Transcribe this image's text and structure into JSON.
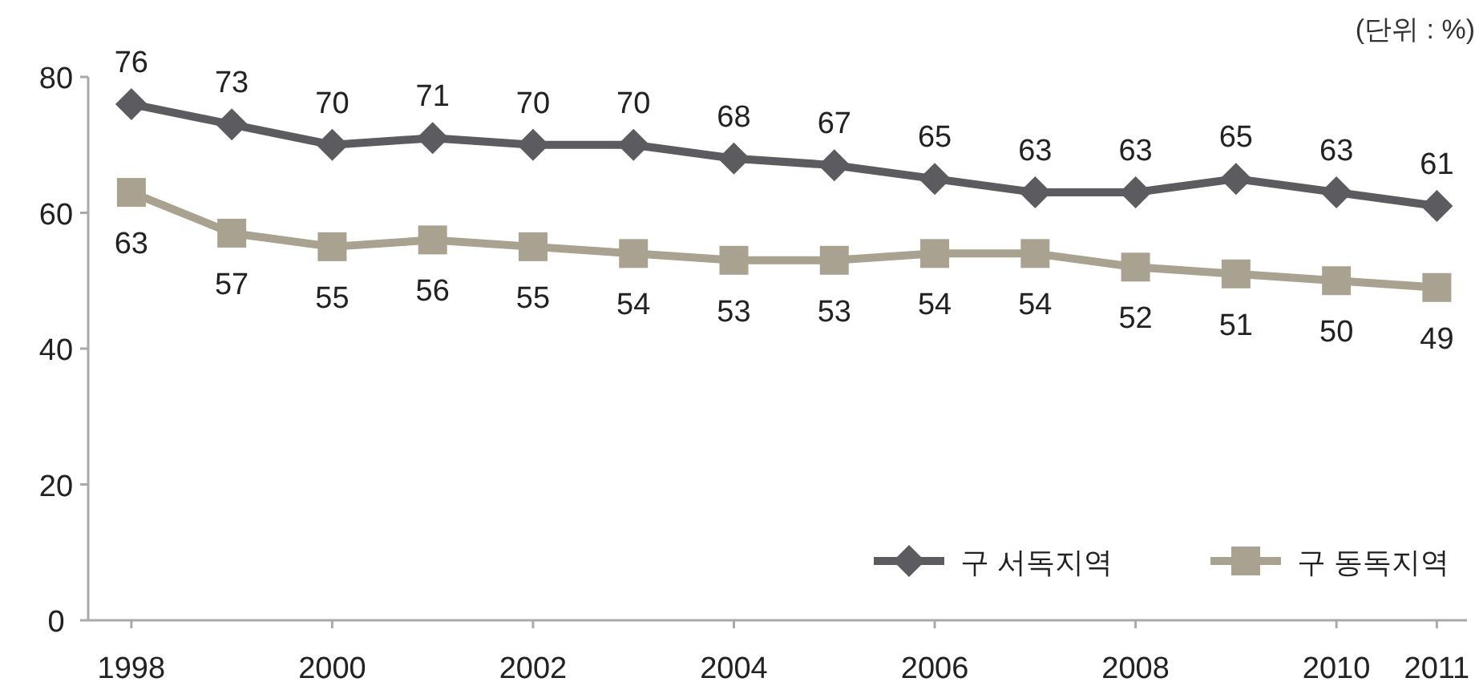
{
  "chart_data": {
    "type": "line",
    "annotations": [
      "(단위 : %)"
    ],
    "x": [
      1998,
      1999,
      2000,
      2001,
      2002,
      2003,
      2004,
      2005,
      2006,
      2007,
      2008,
      2009,
      2010,
      2011
    ],
    "series": [
      {
        "name": "구 서독지역",
        "color": "#5c5c60",
        "marker": "diamond",
        "values": [
          76,
          73,
          70,
          71,
          70,
          70,
          68,
          67,
          65,
          63,
          63,
          65,
          63,
          61
        ]
      },
      {
        "name": "구 동독지역",
        "color": "#aaa290",
        "marker": "square",
        "values": [
          63,
          57,
          55,
          56,
          55,
          54,
          53,
          53,
          54,
          54,
          52,
          51,
          50,
          49
        ]
      }
    ],
    "xlim": [
      1997.57,
      2011.3
    ],
    "xticks": [
      1998,
      2000,
      2002,
      2004,
      2006,
      2008,
      2010,
      2011
    ],
    "ylim": [
      0,
      80
    ],
    "yticks": [
      0,
      20,
      40,
      60,
      80
    ],
    "data_labels": true,
    "legend": "bottom right",
    "grid": false,
    "line_style": "solid"
  }
}
